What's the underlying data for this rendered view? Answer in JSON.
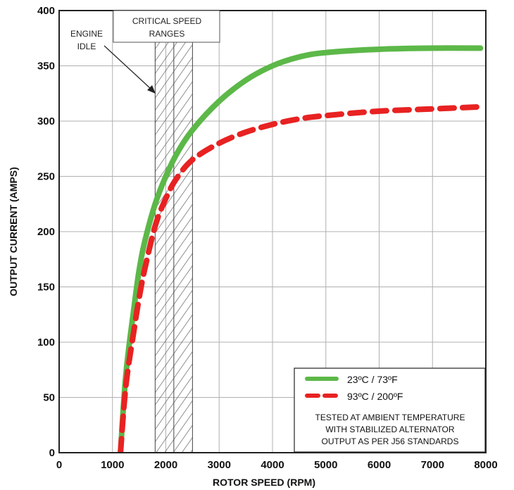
{
  "chart_data": {
    "type": "line",
    "xlabel": "ROTOR SPEED (RPM)",
    "ylabel": "OUTPUT CURRENT (AMPS)",
    "xlim": [
      0,
      8000
    ],
    "ylim": [
      0,
      400
    ],
    "x_ticks": [
      "0",
      "1000",
      "2000",
      "3000",
      "4000",
      "5000",
      "6000",
      "7000",
      "8000"
    ],
    "y_ticks": [
      "0",
      "50",
      "100",
      "150",
      "200",
      "250",
      "300",
      "350",
      "400"
    ],
    "grid": true,
    "legend_position": "bottom-right",
    "series": [
      {
        "name": "23ºC / 73ºF",
        "color": "#5cb848",
        "style": "solid",
        "x": [
          1150,
          1250,
          1400,
          1500,
          1600,
          1800,
          2000,
          2200,
          2500,
          3000,
          3500,
          4000,
          4500,
          5000,
          6000,
          7000,
          7900
        ],
        "y": [
          0,
          70,
          130,
          165,
          190,
          225,
          250,
          270,
          292,
          318,
          337,
          350,
          358,
          362,
          365,
          366,
          366
        ]
      },
      {
        "name": "93ºC / 200ºF",
        "color": "#e82222",
        "style": "dashed",
        "x": [
          1150,
          1250,
          1400,
          1500,
          1600,
          1800,
          2000,
          2200,
          2500,
          3000,
          3500,
          4000,
          4500,
          5000,
          6000,
          7000,
          7950
        ],
        "y": [
          0,
          60,
          110,
          140,
          165,
          205,
          230,
          248,
          265,
          280,
          290,
          297,
          302,
          305,
          309,
          311,
          313
        ]
      }
    ],
    "annotations": {
      "engine_idle": [
        "ENGINE",
        "IDLE"
      ],
      "critical_speed": [
        "CRITICAL SPEED",
        "RANGES"
      ],
      "critical_range_rpm": [
        1800,
        2500
      ],
      "engine_idle_pointer_rpm": 1800,
      "note": [
        "TESTED AT AMBIENT TEMPERATURE",
        "WITH  STABILIZED ALTERNATOR",
        "OUTPUT AS PER J56 STANDARDS"
      ]
    }
  }
}
